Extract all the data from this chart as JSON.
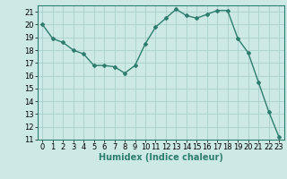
{
  "x": [
    0,
    1,
    2,
    3,
    4,
    5,
    6,
    7,
    8,
    9,
    10,
    11,
    12,
    13,
    14,
    15,
    16,
    17,
    18,
    19,
    20,
    21,
    22,
    23
  ],
  "y": [
    20.0,
    18.9,
    18.6,
    18.0,
    17.7,
    16.8,
    16.8,
    16.7,
    16.2,
    16.8,
    18.5,
    19.8,
    20.5,
    21.2,
    20.7,
    20.5,
    20.8,
    21.1,
    21.1,
    18.9,
    17.8,
    15.5,
    13.2,
    11.2
  ],
  "line_color": "#2e7d6e",
  "marker": "D",
  "markersize": 2.0,
  "linewidth": 1.0,
  "xlabel": "Humidex (Indice chaleur)",
  "xlabel_fontsize": 7,
  "tick_fontsize": 6,
  "ylim": [
    11,
    21.5
  ],
  "xlim": [
    -0.5,
    23.5
  ],
  "yticks": [
    11,
    12,
    13,
    14,
    15,
    16,
    17,
    18,
    19,
    20,
    21
  ],
  "xticks": [
    0,
    1,
    2,
    3,
    4,
    5,
    6,
    7,
    8,
    9,
    10,
    11,
    12,
    13,
    14,
    15,
    16,
    17,
    18,
    19,
    20,
    21,
    22,
    23
  ],
  "bg_color": "#cce9e5",
  "grid_color": "#aad0cc",
  "fig_bg": "#cce9e5"
}
